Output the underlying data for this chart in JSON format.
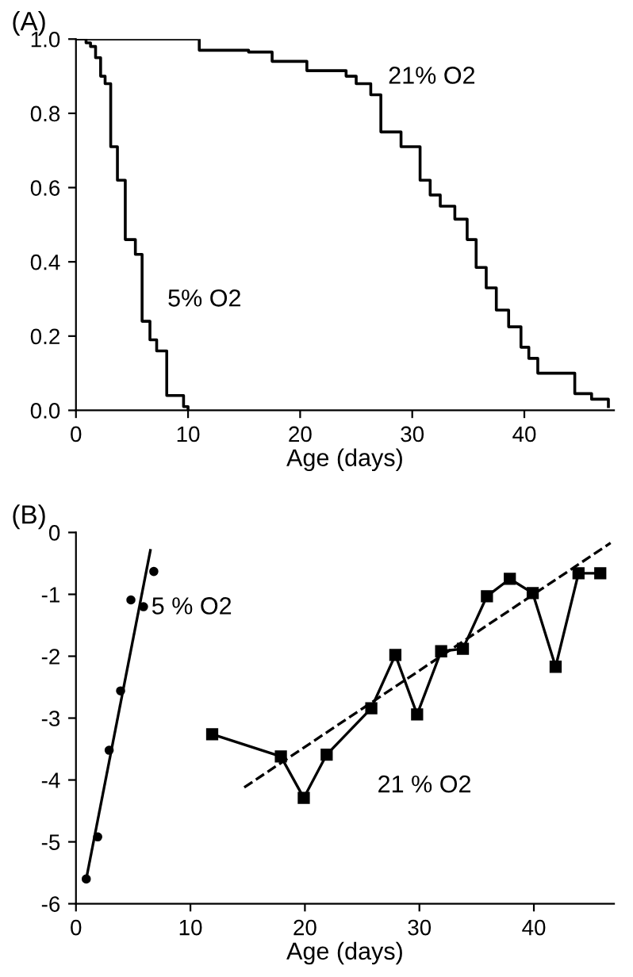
{
  "chart_data": [
    {
      "type": "step",
      "title": "(A)",
      "xlabel": "Age (days)",
      "xlim": [
        0,
        48
      ],
      "xticks": [
        0,
        10,
        20,
        30,
        40
      ],
      "ylim": [
        0,
        1
      ],
      "yticks": [
        {
          "value": 0,
          "label": "0.0"
        },
        {
          "value": 0.2,
          "label": "0.2"
        },
        {
          "value": 0.4,
          "label": "0.4"
        },
        {
          "value": 0.6,
          "label": "0.6"
        },
        {
          "value": 0.8,
          "label": "0.8"
        },
        {
          "value": 1,
          "label": "1.0"
        }
      ],
      "grid": false,
      "legend": false,
      "marker": "none",
      "line_style": "solid",
      "series": [
        {
          "name": "5% O2",
          "color": "#000000",
          "x": [
            0,
            0.9,
            1.3,
            1.75,
            2.2,
            2.6,
            3.1,
            3.7,
            4.4,
            5.3,
            5.9,
            6.6,
            7.2,
            8.1,
            9.6,
            10
          ],
          "values": [
            1.0,
            0.99,
            0.98,
            0.95,
            0.9,
            0.88,
            0.71,
            0.62,
            0.46,
            0.42,
            0.24,
            0.19,
            0.16,
            0.04,
            0.01,
            0
          ]
        },
        {
          "name": "21% O2",
          "color": "#000000",
          "x": [
            0,
            11,
            15.4,
            17.5,
            20.6,
            24.1,
            25,
            26.3,
            27.2,
            29,
            30.7,
            31.6,
            32.5,
            33.8,
            34.9,
            35.7,
            36.6,
            37.5,
            38.6,
            39.7,
            40.4,
            41.2,
            44.5,
            46,
            47.5
          ],
          "values": [
            1.0,
            0.97,
            0.965,
            0.94,
            0.915,
            0.9,
            0.88,
            0.85,
            0.75,
            0.71,
            0.62,
            0.58,
            0.55,
            0.515,
            0.46,
            0.385,
            0.33,
            0.27,
            0.225,
            0.17,
            0.14,
            0.1,
            0.045,
            0.03,
            0.01
          ]
        }
      ]
    },
    {
      "type": "line",
      "title": "(B)",
      "xlabel": "Age (days)",
      "xlim": [
        0,
        47
      ],
      "xticks": [
        0,
        10,
        20,
        30,
        40
      ],
      "ylim": [
        -6,
        0
      ],
      "yticks": [
        {
          "value": -6,
          "label": "-6"
        },
        {
          "value": -5,
          "label": "-5"
        },
        {
          "value": -4,
          "label": "-4"
        },
        {
          "value": -3,
          "label": "-3"
        },
        {
          "value": -2,
          "label": "-2"
        },
        {
          "value": -1,
          "label": "-1"
        },
        0
      ],
      "grid": false,
      "legend": false,
      "series": [
        {
          "name": "5 % O2",
          "type": "scatter",
          "marker": "circle",
          "color": "#000000",
          "x": [
            0.9,
            1.9,
            2.9,
            3.9,
            4.8,
            5.9,
            6.8
          ],
          "values": [
            -5.6,
            -4.92,
            -3.52,
            -2.56,
            -1.09,
            -1.2,
            -0.63
          ]
        },
        {
          "type": "line",
          "marker": "none",
          "line_style": "solid",
          "color": "#000000",
          "x": [
            0.9,
            6.5
          ],
          "values": [
            -5.6,
            -0.29
          ]
        },
        {
          "name": "21 % O2",
          "type": "line",
          "marker": "square",
          "line_style": "solid",
          "color": "#000000",
          "x": [
            11.9,
            17.9,
            19.9,
            21.9,
            25.8,
            27.9,
            29.8,
            31.9,
            33.8,
            35.9,
            37.9,
            39.9,
            41.9,
            43.9,
            45.8
          ],
          "values": [
            -3.26,
            -3.62,
            -4.29,
            -3.59,
            -2.84,
            -1.98,
            -2.94,
            -1.92,
            -1.88,
            -1.03,
            -0.75,
            -0.98,
            -2.17,
            -0.66,
            -0.66
          ]
        },
        {
          "type": "line",
          "marker": "none",
          "line_style": "dashed",
          "color": "#000000",
          "x": [
            14.7,
            46.7
          ],
          "values": [
            -4.12,
            -0.17
          ]
        }
      ]
    }
  ]
}
